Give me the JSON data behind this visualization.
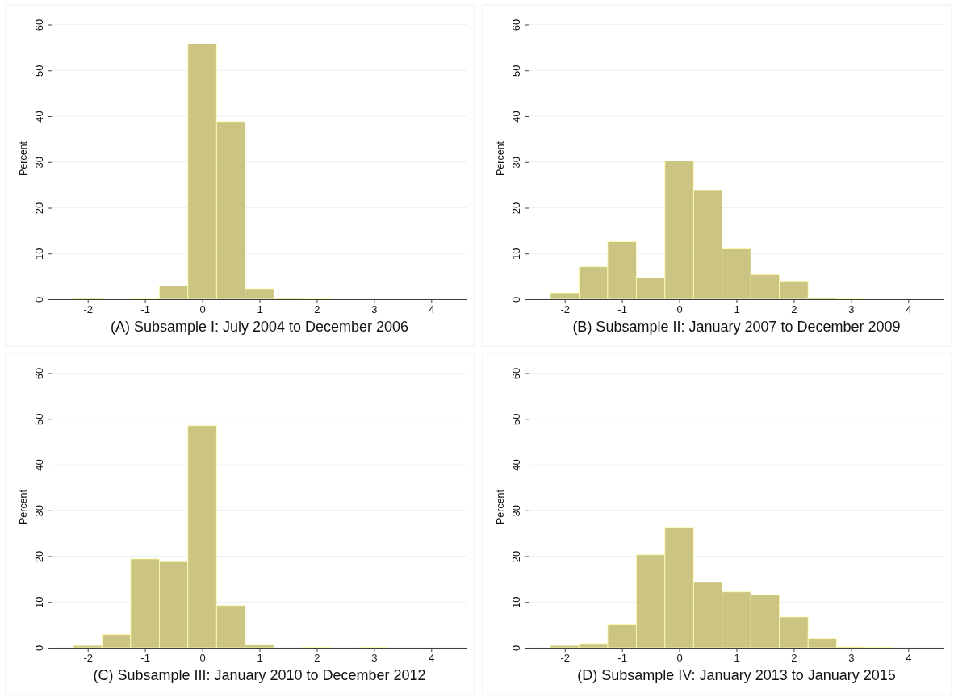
{
  "chart_data": [
    {
      "type": "histogram",
      "xlabel": "(A) Subsample I: July 2004 to December 2006",
      "ylabel": "Percent",
      "color": "#cbc482",
      "bins": [
        -2.25,
        -1.75,
        -1.25,
        -0.75,
        -0.25,
        0.25,
        0.75,
        1.25,
        1.75,
        2.25
      ],
      "values": [
        0.2,
        0,
        0.1,
        2.9,
        55.8,
        38.8,
        2.3,
        0.2,
        0.1
      ],
      "xlim": [
        -2.63,
        4.63
      ],
      "xticks": [
        -2,
        -1,
        0,
        1,
        2,
        3,
        4
      ],
      "ylim": [
        0,
        61.5
      ],
      "yticks": [
        0,
        10,
        20,
        30,
        40,
        50,
        60
      ],
      "grid": "y"
    },
    {
      "type": "histogram",
      "xlabel": "(B) Subsample II: January 2007 to December 2009",
      "ylabel": "Percent",
      "color": "#cbc482",
      "bins": [
        -2.25,
        -1.75,
        -1.25,
        -0.75,
        -0.25,
        0.25,
        0.75,
        1.25,
        1.75,
        2.25,
        2.75,
        3.25
      ],
      "values": [
        1.4,
        7.1,
        12.6,
        4.7,
        30.2,
        23.8,
        11.0,
        5.4,
        4.0,
        0.3,
        0.1
      ],
      "xlim": [
        -2.63,
        4.63
      ],
      "xticks": [
        -2,
        -1,
        0,
        1,
        2,
        3,
        4
      ],
      "ylim": [
        0,
        61.5
      ],
      "yticks": [
        0,
        10,
        20,
        30,
        40,
        50,
        60
      ],
      "grid": "y"
    },
    {
      "type": "histogram",
      "xlabel": "(C) Subsample III: January 2010 to December 2012",
      "ylabel": "Percent",
      "color": "#cbc482",
      "bins": [
        -2.25,
        -1.75,
        -1.25,
        -0.75,
        -0.25,
        0.25,
        0.75,
        1.25,
        1.75,
        2.25,
        2.75,
        3.25
      ],
      "values": [
        0.5,
        2.9,
        19.4,
        18.8,
        48.5,
        9.2,
        0.7,
        0,
        0.1,
        0,
        0.1
      ],
      "xlim": [
        -2.63,
        4.63
      ],
      "xticks": [
        -2,
        -1,
        0,
        1,
        2,
        3,
        4
      ],
      "ylim": [
        0,
        61.5
      ],
      "yticks": [
        0,
        10,
        20,
        30,
        40,
        50,
        60
      ],
      "grid": "y"
    },
    {
      "type": "histogram",
      "xlabel": "(D) Subsample IV: January 2013 to January 2015",
      "ylabel": "Percent",
      "color": "#cbc482",
      "bins": [
        -2.25,
        -1.75,
        -1.25,
        -0.75,
        -0.25,
        0.25,
        0.75,
        1.25,
        1.75,
        2.25,
        2.75,
        3.25,
        3.75
      ],
      "values": [
        0.5,
        0.9,
        5.0,
        20.3,
        26.3,
        14.3,
        12.2,
        11.6,
        6.7,
        2.0,
        0.2,
        0.1
      ],
      "xlim": [
        -2.63,
        4.63
      ],
      "xticks": [
        -2,
        -1,
        0,
        1,
        2,
        3,
        4
      ],
      "ylim": [
        0,
        61.5
      ],
      "yticks": [
        0,
        10,
        20,
        30,
        40,
        50,
        60
      ],
      "grid": "y"
    }
  ]
}
